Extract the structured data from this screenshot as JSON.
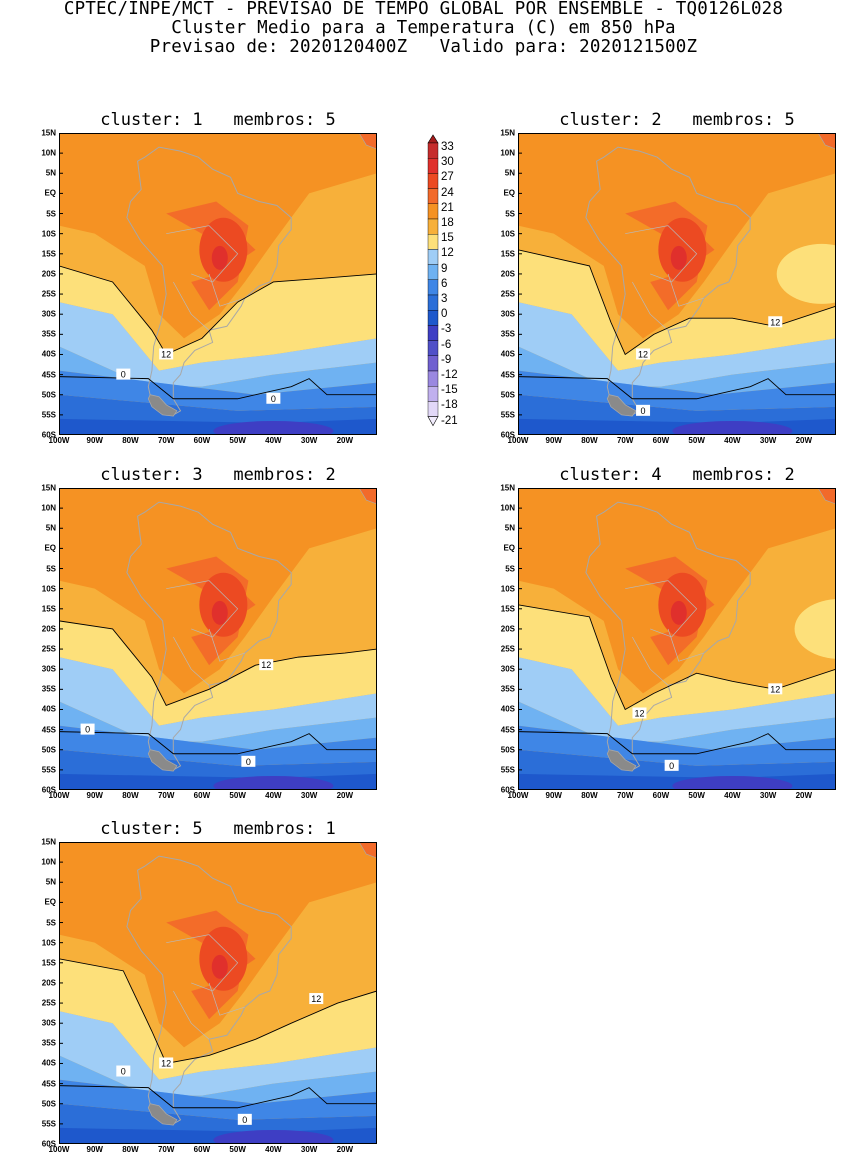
{
  "header": {
    "line1": "CPTEC/INPE/MCT - PREVISAO DE TEMPO GLOBAL POR ENSEMBLE - TQ0126L028",
    "line2": "Cluster Medio para a Temperatura (C) em 850 hPa",
    "line3": "Previsao de: 2020120400Z   Valido para: 2020121500Z"
  },
  "axes": {
    "lat_ticks": [
      "15N",
      "10N",
      "5N",
      "EQ",
      "5S",
      "10S",
      "15S",
      "20S",
      "25S",
      "30S",
      "35S",
      "40S",
      "45S",
      "50S",
      "55S",
      "60S"
    ],
    "lon_ticks": [
      "100W",
      "90W",
      "80W",
      "70W",
      "60W",
      "50W",
      "40W",
      "30W",
      "20W"
    ],
    "lat_range": [
      -60,
      15
    ],
    "lon_range": [
      -100,
      -11
    ]
  },
  "colorbar": {
    "labels": [
      "33",
      "30",
      "27",
      "24",
      "21",
      "18",
      "15",
      "12",
      "9",
      "6",
      "3",
      "0",
      "-3",
      "-6",
      "-9",
      "-12",
      "-15",
      "-18",
      "-21"
    ],
    "colors": [
      "#a51c1c",
      "#c62c2c",
      "#e0302c",
      "#ec4a22",
      "#f26a2a",
      "#f59223",
      "#f7b03a",
      "#fde07a",
      "#9fcdf6",
      "#6fb2f2",
      "#3f86e6",
      "#2b6ed8",
      "#1e58cc",
      "#3e3ec4",
      "#5050c8",
      "#7060d0",
      "#9a88e0",
      "#c0b0ee",
      "#e2d8f8",
      "#f1ecfc"
    ]
  },
  "clusters": [
    {
      "title": "cluster: 1   membros: 5",
      "contour_labels": [
        "12",
        "0",
        "0"
      ]
    },
    {
      "title": "cluster: 2   membros: 5",
      "contour_labels": [
        "12",
        "12",
        "0"
      ]
    },
    {
      "title": "cluster: 3   membros: 2",
      "contour_labels": [
        "12",
        "0",
        "0"
      ]
    },
    {
      "title": "cluster: 4   membros: 2",
      "contour_labels": [
        "12",
        "12",
        "0"
      ]
    },
    {
      "title": "cluster: 5   membros: 1",
      "contour_labels": [
        "12",
        "12",
        "0",
        "0"
      ]
    }
  ]
}
